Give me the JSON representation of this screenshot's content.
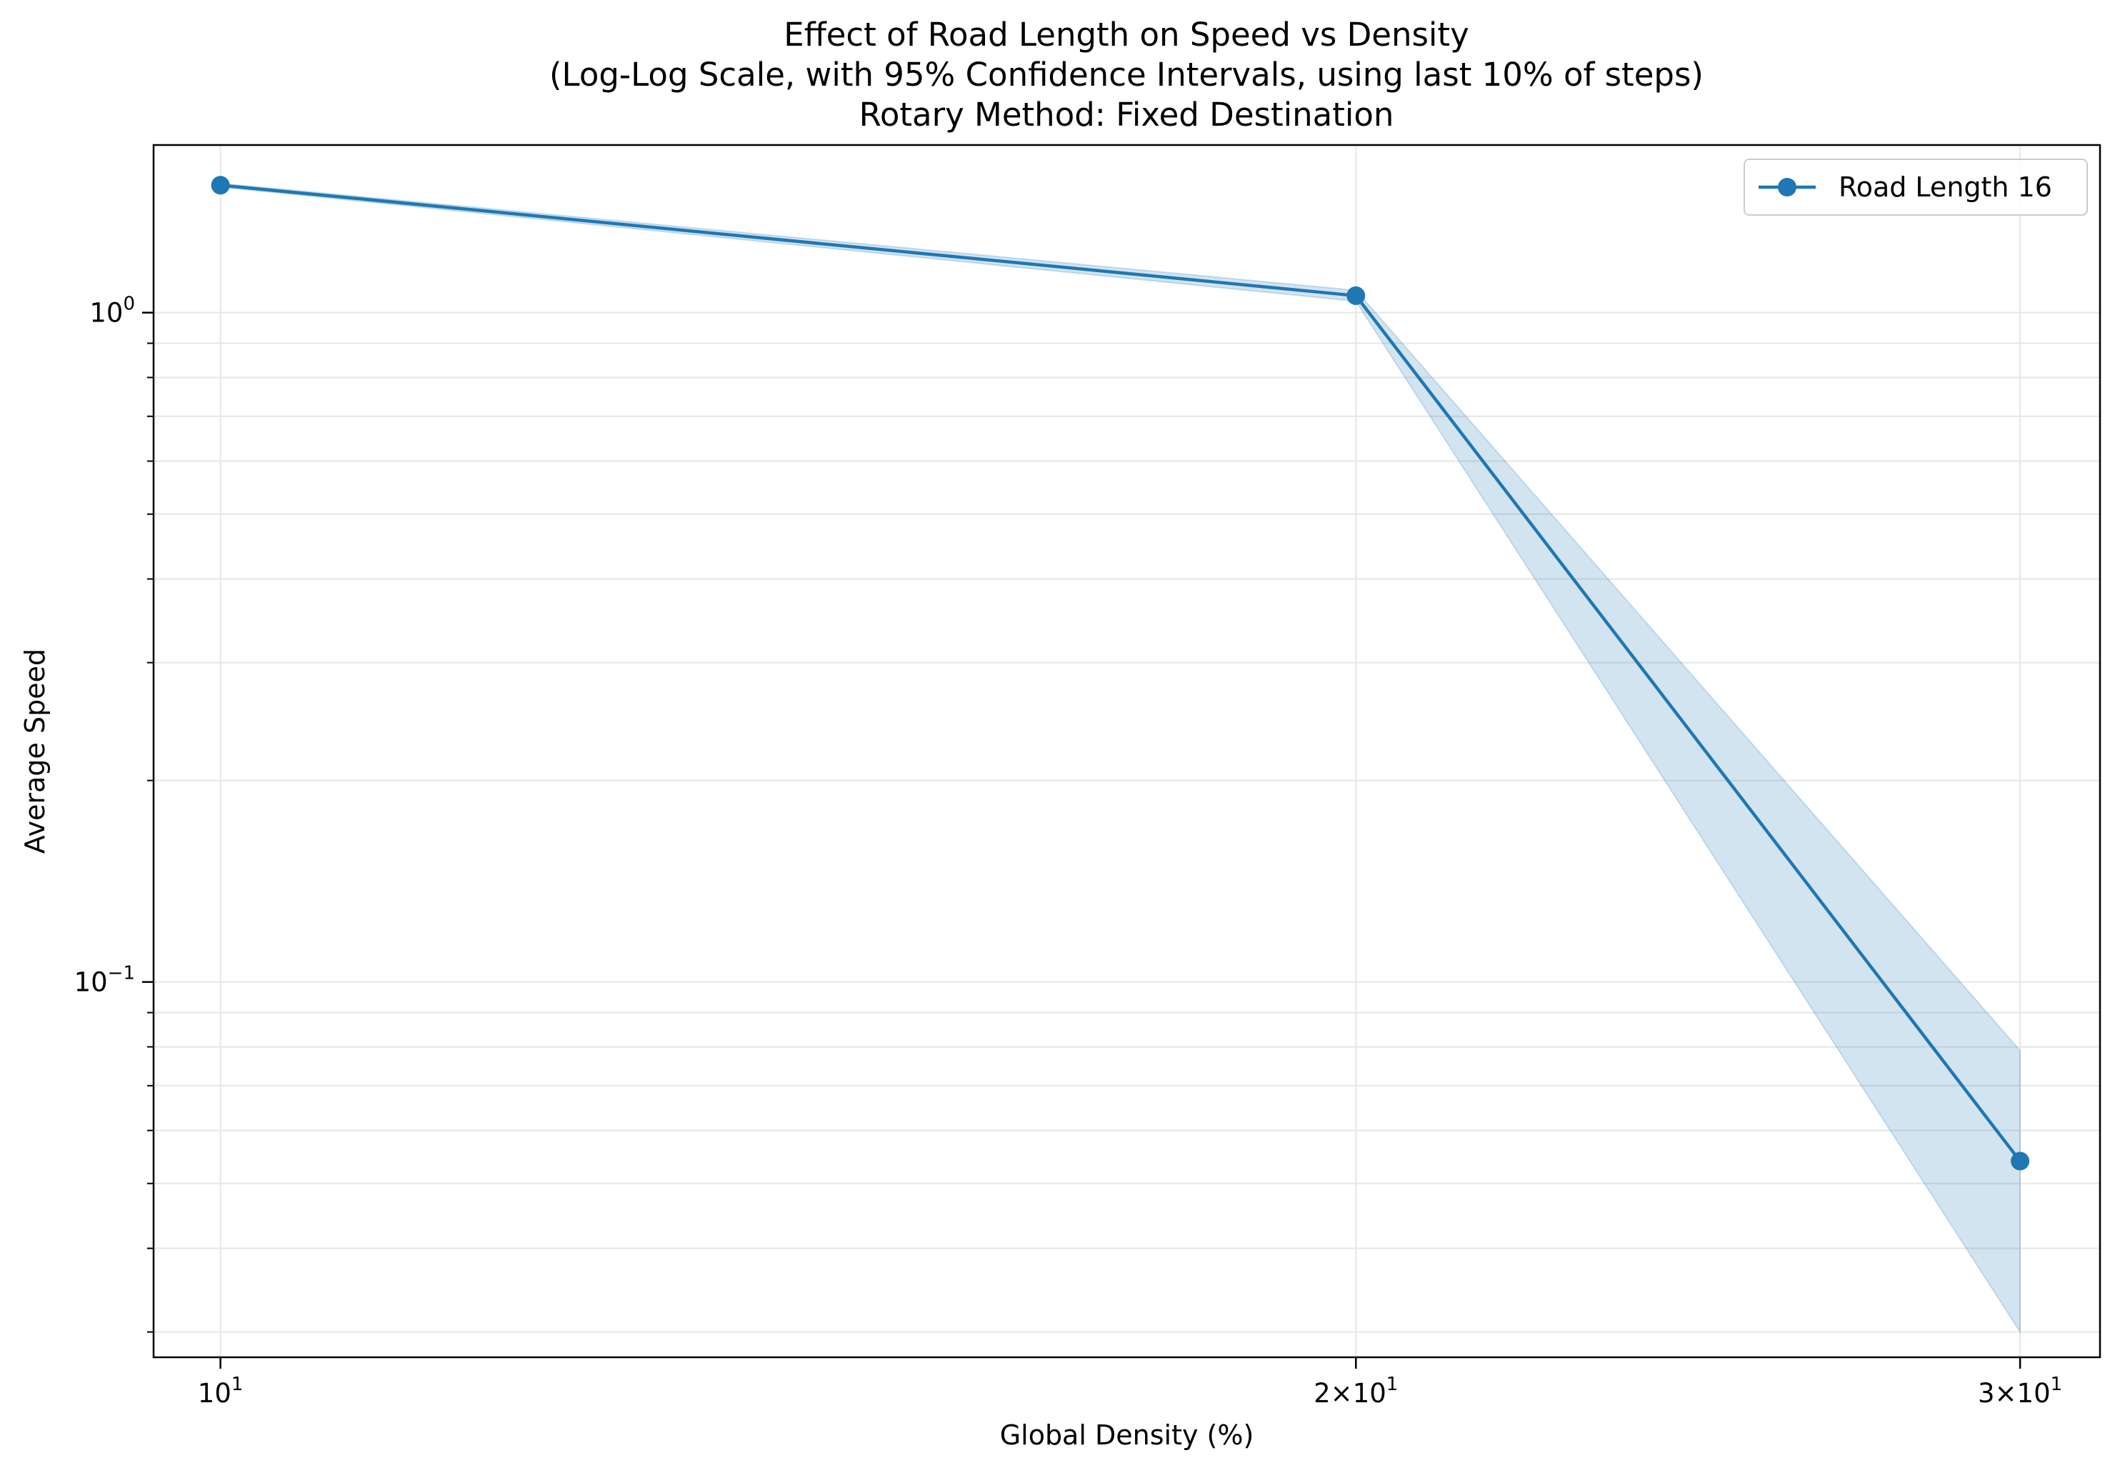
{
  "chart_data": {
    "type": "line",
    "title_lines": [
      "Effect of Road Length on Speed vs Density",
      "(Log-Log Scale, with 95% Confidence Intervals, using last 10% of steps)",
      "Rotary Method: Fixed Destination"
    ],
    "xlabel": "Global Density (%)",
    "ylabel": "Average Speed",
    "x_scale": "log",
    "y_scale": "log",
    "xlim": [
      9.6,
      31.5
    ],
    "ylim": [
      0.0275,
      1.78
    ],
    "x_ticks": [
      {
        "value": 10,
        "base": "10",
        "exp": "1",
        "mult": ""
      },
      {
        "value": 20,
        "base": "10",
        "exp": "1",
        "mult": "2×"
      },
      {
        "value": 30,
        "base": "10",
        "exp": "1",
        "mult": "3×"
      }
    ],
    "y_ticks": [
      {
        "value": 1.0,
        "base": "10",
        "exp": "0"
      },
      {
        "value": 0.1,
        "base": "10",
        "exp": "−1"
      }
    ],
    "grid": true,
    "legend_position": "upper right",
    "series": [
      {
        "name": "Road Length 16",
        "color": "#1f77b4",
        "marker": "circle",
        "x": [
          10,
          20,
          30
        ],
        "y": [
          1.55,
          1.06,
          0.054
        ],
        "ci_lower": [
          1.54,
          1.04,
          0.03
        ],
        "ci_upper": [
          1.56,
          1.08,
          0.079
        ]
      }
    ]
  }
}
